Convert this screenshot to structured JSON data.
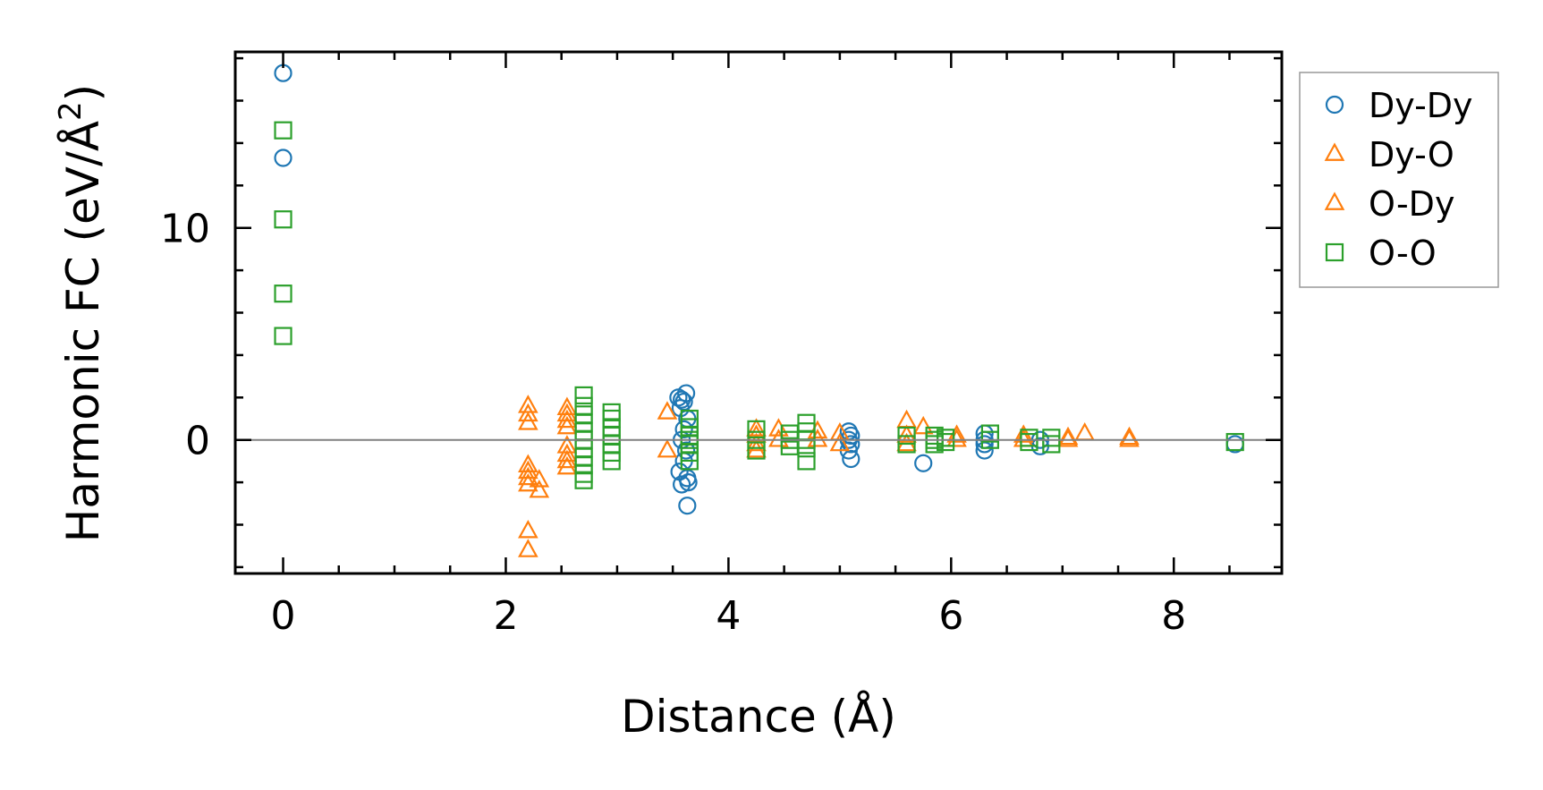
{
  "chart_data": {
    "type": "scatter",
    "title": "",
    "xlabel": "Distance (Å)",
    "ylabel_main": "Harmonic FC (eV/Å",
    "ylabel_sup": "2",
    "ylabel_close": ")",
    "xlim": [
      -0.43,
      8.97
    ],
    "ylim": [
      -6.3,
      18.3
    ],
    "x_ticks": [
      0,
      2,
      4,
      6,
      8
    ],
    "x_tick_labels": [
      "0",
      "2",
      "4",
      "6",
      "8"
    ],
    "x_minor_step": 0.5,
    "y_ticks": [
      0,
      10
    ],
    "y_tick_labels": [
      "0",
      "10"
    ],
    "y_minor_step": 2,
    "hline": 0,
    "grid": false,
    "legend_position": "outside-right-top",
    "series": [
      {
        "name": "Dy-Dy",
        "marker": "circle",
        "color": "#1f77b4",
        "points": [
          [
            0,
            17.3
          ],
          [
            0,
            13.3
          ],
          [
            3.55,
            2.0
          ],
          [
            3.58,
            1.9
          ],
          [
            3.62,
            2.2
          ],
          [
            3.6,
            1.8
          ],
          [
            3.57,
            1.5
          ],
          [
            3.63,
            1.0
          ],
          [
            3.6,
            0.5
          ],
          [
            3.58,
            0
          ],
          [
            3.62,
            -0.5
          ],
          [
            3.6,
            -1.0
          ],
          [
            3.56,
            -1.5
          ],
          [
            3.63,
            -1.8
          ],
          [
            3.58,
            -2.1
          ],
          [
            3.64,
            -2.0
          ],
          [
            3.63,
            -3.1
          ],
          [
            5.08,
            0.4
          ],
          [
            5.1,
            0.2
          ],
          [
            5.08,
            0
          ],
          [
            5.1,
            -0.2
          ],
          [
            5.08,
            -0.5
          ],
          [
            5.1,
            -0.9
          ],
          [
            5.75,
            -1.1
          ],
          [
            6.3,
            0.3
          ],
          [
            6.3,
            0
          ],
          [
            6.3,
            -0.2
          ],
          [
            6.3,
            -0.5
          ],
          [
            6.8,
            -0.3
          ],
          [
            6.8,
            0
          ],
          [
            8.55,
            -0.2
          ]
        ]
      },
      {
        "name": "Dy-O",
        "marker": "triangle",
        "color": "#ff7f0e",
        "points": [
          [
            2.2,
            1.6
          ],
          [
            2.2,
            1.2
          ],
          [
            2.2,
            0.8
          ],
          [
            2.2,
            -1.2
          ],
          [
            2.2,
            -1.5
          ],
          [
            2.2,
            -1.8
          ],
          [
            2.2,
            -2.1
          ],
          [
            2.2,
            -4.3
          ],
          [
            2.2,
            -5.2
          ],
          [
            2.3,
            -1.9
          ],
          [
            2.3,
            -2.4
          ],
          [
            2.55,
            1.5
          ],
          [
            2.55,
            1.2
          ],
          [
            2.55,
            0.9
          ],
          [
            2.55,
            0.6
          ],
          [
            3.45,
            1.3
          ],
          [
            4.25,
            0.5
          ],
          [
            4.25,
            0.2
          ],
          [
            4.45,
            0.5
          ],
          [
            4.8,
            0.4
          ],
          [
            5.0,
            0.3
          ],
          [
            5.6,
            0.9
          ],
          [
            5.6,
            0.2
          ],
          [
            5.75,
            0.6
          ],
          [
            6.05,
            0.2
          ],
          [
            6.65,
            0.2
          ],
          [
            7.05,
            0.1
          ],
          [
            7.2,
            0.3
          ],
          [
            7.6,
            0.1
          ]
        ]
      },
      {
        "name": "O-Dy",
        "marker": "triangle",
        "color": "#ff7f0e",
        "points": [
          [
            2.55,
            -0.3
          ],
          [
            2.55,
            -0.7
          ],
          [
            2.55,
            -1.0
          ],
          [
            2.55,
            -1.3
          ],
          [
            3.45,
            -0.5
          ],
          [
            4.25,
            -0.2
          ],
          [
            4.25,
            -0.5
          ],
          [
            4.45,
            0
          ],
          [
            4.8,
            0
          ],
          [
            5.0,
            -0.2
          ],
          [
            5.6,
            -0.2
          ],
          [
            6.05,
            0
          ],
          [
            6.65,
            0
          ],
          [
            7.05,
            0
          ],
          [
            7.6,
            0
          ]
        ]
      },
      {
        "name": "O-O",
        "marker": "square",
        "color": "#2ca02c",
        "points": [
          [
            0,
            14.6
          ],
          [
            0,
            10.4
          ],
          [
            0,
            6.9
          ],
          [
            0,
            4.9
          ],
          [
            2.7,
            2.1
          ],
          [
            2.7,
            1.6
          ],
          [
            2.7,
            1.2
          ],
          [
            2.7,
            0.8
          ],
          [
            2.7,
            0.4
          ],
          [
            2.7,
            0
          ],
          [
            2.7,
            -0.4
          ],
          [
            2.7,
            -0.8
          ],
          [
            2.7,
            -1.2
          ],
          [
            2.7,
            -1.6
          ],
          [
            2.7,
            -1.9
          ],
          [
            2.95,
            1.3
          ],
          [
            2.95,
            1.0
          ],
          [
            2.95,
            0.6
          ],
          [
            2.95,
            0.2
          ],
          [
            2.95,
            -0.2
          ],
          [
            2.95,
            -0.6
          ],
          [
            2.95,
            -1.0
          ],
          [
            3.65,
            1.0
          ],
          [
            3.65,
            0.6
          ],
          [
            3.65,
            0.2
          ],
          [
            3.65,
            0
          ],
          [
            3.65,
            -0.2
          ],
          [
            3.65,
            -0.6
          ],
          [
            3.65,
            -1.0
          ],
          [
            4.25,
            0.5
          ],
          [
            4.25,
            0
          ],
          [
            4.25,
            -0.5
          ],
          [
            4.55,
            0.3
          ],
          [
            4.55,
            0
          ],
          [
            4.55,
            -0.3
          ],
          [
            4.7,
            0.8
          ],
          [
            4.7,
            0.4
          ],
          [
            4.7,
            0
          ],
          [
            4.7,
            -0.4
          ],
          [
            4.7,
            -1.0
          ],
          [
            5.6,
            0.2
          ],
          [
            5.6,
            -0.2
          ],
          [
            5.85,
            0.2
          ],
          [
            5.85,
            0
          ],
          [
            5.85,
            -0.2
          ],
          [
            5.95,
            0.1
          ],
          [
            5.95,
            -0.1
          ],
          [
            6.35,
            0.3
          ],
          [
            6.35,
            0
          ],
          [
            6.7,
            0.1
          ],
          [
            6.7,
            -0.1
          ],
          [
            6.9,
            0.1
          ],
          [
            6.9,
            -0.2
          ],
          [
            8.55,
            -0.1
          ]
        ]
      }
    ]
  }
}
